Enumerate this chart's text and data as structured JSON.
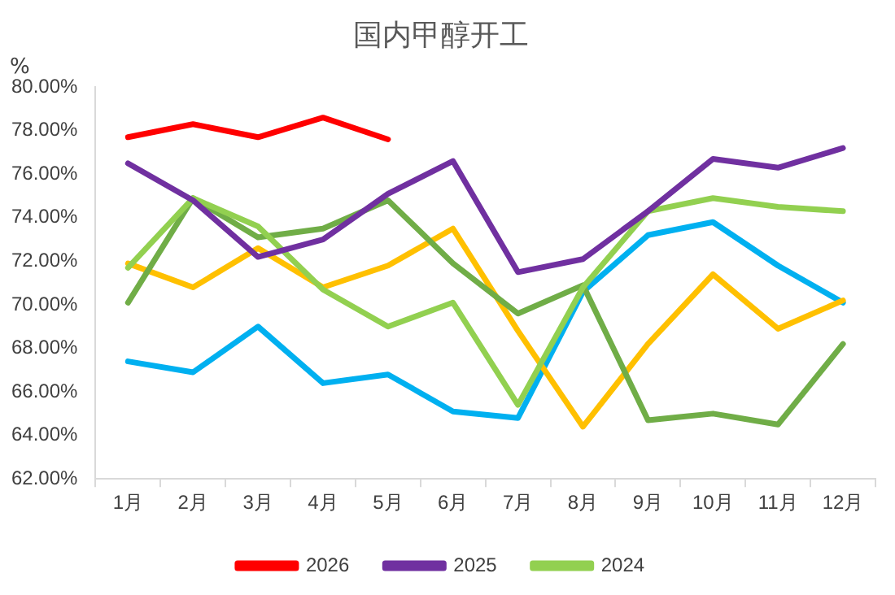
{
  "chart_data": {
    "type": "line",
    "title": "国内甲醇开工",
    "ylabel": "%",
    "categories": [
      "1月",
      "2月",
      "3月",
      "4月",
      "5月",
      "6月",
      "7月",
      "8月",
      "9月",
      "10月",
      "11月",
      "12月"
    ],
    "series": [
      {
        "name": "2026",
        "color": "#ff0000",
        "values": [
          77.7,
          78.3,
          77.7,
          78.6,
          77.6,
          null,
          null,
          null,
          null,
          null,
          null,
          null
        ]
      },
      {
        "name": "2025",
        "color": "#7030a0",
        "values": [
          76.5,
          74.8,
          72.2,
          73.0,
          75.1,
          76.6,
          71.5,
          72.1,
          74.3,
          76.7,
          76.3,
          77.2
        ]
      },
      {
        "name": "2024",
        "color": "#92d050",
        "values": [
          71.7,
          74.9,
          73.6,
          70.7,
          69.0,
          70.1,
          65.4,
          70.8,
          74.3,
          74.9,
          74.5,
          74.3
        ]
      },
      {
        "color": "#70ad47",
        "values": [
          70.1,
          74.9,
          73.1,
          73.5,
          74.8,
          71.9,
          69.6,
          70.9,
          64.7,
          65.0,
          64.5,
          68.2
        ]
      },
      {
        "color": "#ffc000",
        "values": [
          71.9,
          70.8,
          72.6,
          70.8,
          71.8,
          73.5,
          68.8,
          64.4,
          68.2,
          71.4,
          68.9,
          70.2
        ]
      },
      {
        "color": "#00b0f0",
        "values": [
          67.4,
          66.9,
          69.0,
          66.4,
          66.8,
          65.1,
          64.8,
          70.6,
          73.2,
          73.8,
          71.8,
          70.1
        ]
      }
    ],
    "ylim": [
      62,
      80
    ],
    "yticks": [
      {
        "value": 62,
        "label": "62.00%"
      },
      {
        "value": 64,
        "label": "64.00%"
      },
      {
        "value": 66,
        "label": "66.00%"
      },
      {
        "value": 68,
        "label": "68.00%"
      },
      {
        "value": 70,
        "label": "70.00%"
      },
      {
        "value": 72,
        "label": "72.00%"
      },
      {
        "value": 74,
        "label": "74.00%"
      },
      {
        "value": 76,
        "label": "76.00%"
      },
      {
        "value": 78,
        "label": "78.00%"
      },
      {
        "value": 80,
        "label": "80.00%"
      }
    ],
    "grid": false,
    "legend": "bottom",
    "marker": "none",
    "line_style": "solid"
  }
}
